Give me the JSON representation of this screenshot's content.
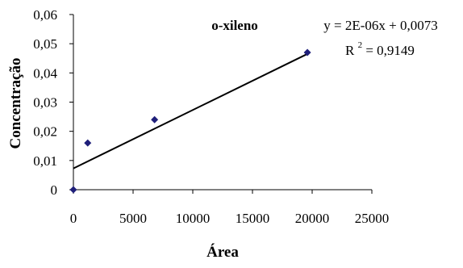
{
  "chart_data": {
    "type": "scatter",
    "title": "o-xileno",
    "xlabel": "Área",
    "ylabel": "Concentração",
    "xlim": [
      0,
      25000
    ],
    "ylim": [
      0,
      0.06
    ],
    "x_ticks": [
      0,
      5000,
      10000,
      15000,
      20000,
      25000
    ],
    "x_tick_labels": [
      "0",
      "5000",
      "10000",
      "15000",
      "20000",
      "25000"
    ],
    "y_ticks": [
      0,
      0.01,
      0.02,
      0.03,
      0.04,
      0.05,
      0.06
    ],
    "y_tick_labels": [
      "0",
      "0,01",
      "0,02",
      "0,03",
      "0,04",
      "0,05",
      "0,06"
    ],
    "grid": false,
    "legend": "none",
    "colors": {
      "marker": "#1f1f7a",
      "trendline": "#000000",
      "axis": "#000000"
    },
    "series": [
      {
        "x": [
          0,
          1200,
          6800,
          19600
        ],
        "y": [
          0,
          0.016,
          0.024,
          0.047
        ]
      }
    ],
    "trendline": {
      "type": "linear",
      "slope": 2e-06,
      "intercept": 0.0073,
      "x_range": [
        0,
        19600
      ]
    },
    "annotations": {
      "equation": "y = 2E-06x + 0,0073",
      "r2_prefix": "R",
      "r2_exponent": "2",
      "r2_value": " = 0,9149"
    }
  }
}
